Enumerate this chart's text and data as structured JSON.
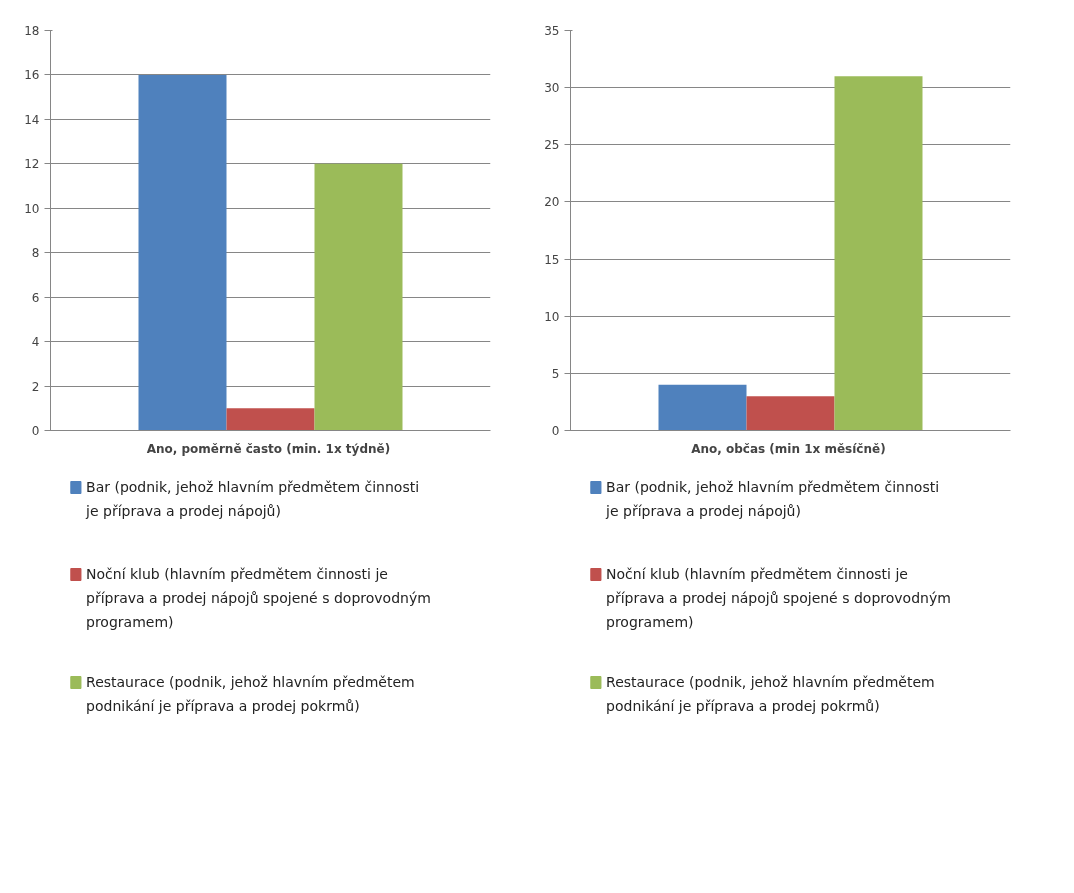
{
  "chart_data": [
    {
      "type": "bar",
      "categories": [
        "Ano, poměrně často  (min. 1x týdně)"
      ],
      "series": [
        {
          "name": "Bar (podnik, jehož hlavním předmětem činnosti je příprava a prodej nápojů)",
          "color": "#4f81bd",
          "values": [
            16
          ]
        },
        {
          "name": "Noční klub (hlavním předmětem činnosti je příprava a prodej nápojů spojené s doprovodným programem)",
          "color": "#c0504d",
          "values": [
            1
          ]
        },
        {
          "name": "Restaurace (podnik, jehož hlavním předmětem podnikání je příprava a prodej pokrmů)",
          "color": "#9bbb59",
          "values": [
            12
          ]
        }
      ],
      "ylim": [
        0,
        18
      ],
      "yticks": [
        0,
        2,
        4,
        6,
        8,
        10,
        12,
        14,
        16,
        18
      ],
      "grid": "y",
      "legend": "bottom"
    },
    {
      "type": "bar",
      "categories": [
        "Ano, občas  (min 1x měsíčně)"
      ],
      "series": [
        {
          "name": "Bar (podnik, jehož hlavním předmětem činnosti je příprava a prodej nápojů)",
          "color": "#4f81bd",
          "values": [
            4
          ]
        },
        {
          "name": "Noční klub (hlavním předmětem činnosti je příprava a prodej nápojů spojené s doprovodným programem)",
          "color": "#c0504d",
          "values": [
            3
          ]
        },
        {
          "name": "Restaurace (podnik, jehož hlavním předmětem podnikání je příprava a prodej pokrmů)",
          "color": "#9bbb59",
          "values": [
            31
          ]
        }
      ],
      "ylim": [
        0,
        35
      ],
      "yticks": [
        0,
        5,
        10,
        15,
        20,
        25,
        30,
        35
      ],
      "grid": "y",
      "legend": "bottom"
    }
  ]
}
